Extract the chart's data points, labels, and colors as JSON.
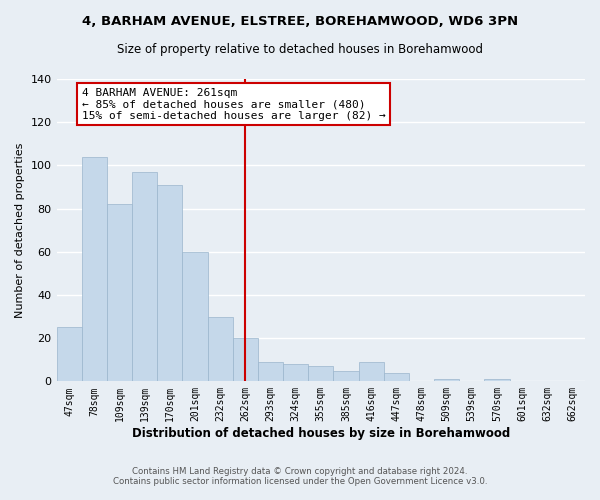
{
  "title": "4, BARHAM AVENUE, ELSTREE, BOREHAMWOOD, WD6 3PN",
  "subtitle": "Size of property relative to detached houses in Borehamwood",
  "xlabel": "Distribution of detached houses by size in Borehamwood",
  "ylabel": "Number of detached properties",
  "bar_color": "#c5d8ea",
  "bar_edge_color": "#9ab5cc",
  "bg_color": "#e8eef4",
  "plot_bg_color": "#e8eef4",
  "categories": [
    "47sqm",
    "78sqm",
    "109sqm",
    "139sqm",
    "170sqm",
    "201sqm",
    "232sqm",
    "262sqm",
    "293sqm",
    "324sqm",
    "355sqm",
    "385sqm",
    "416sqm",
    "447sqm",
    "478sqm",
    "509sqm",
    "539sqm",
    "570sqm",
    "601sqm",
    "632sqm",
    "662sqm"
  ],
  "values": [
    25,
    104,
    82,
    97,
    91,
    60,
    30,
    20,
    9,
    8,
    7,
    5,
    9,
    4,
    0,
    1,
    0,
    1,
    0,
    0,
    0
  ],
  "vline_color": "#cc0000",
  "annotation_line1": "4 BARHAM AVENUE: 261sqm",
  "annotation_line2": "← 85% of detached houses are smaller (480)",
  "annotation_line3": "15% of semi-detached houses are larger (82) →",
  "annotation_box_color": "#ffffff",
  "annotation_box_edge": "#cc0000",
  "ylim": [
    0,
    140
  ],
  "yticks": [
    0,
    20,
    40,
    60,
    80,
    100,
    120,
    140
  ],
  "footer1": "Contains HM Land Registry data © Crown copyright and database right 2024.",
  "footer2": "Contains public sector information licensed under the Open Government Licence v3.0."
}
